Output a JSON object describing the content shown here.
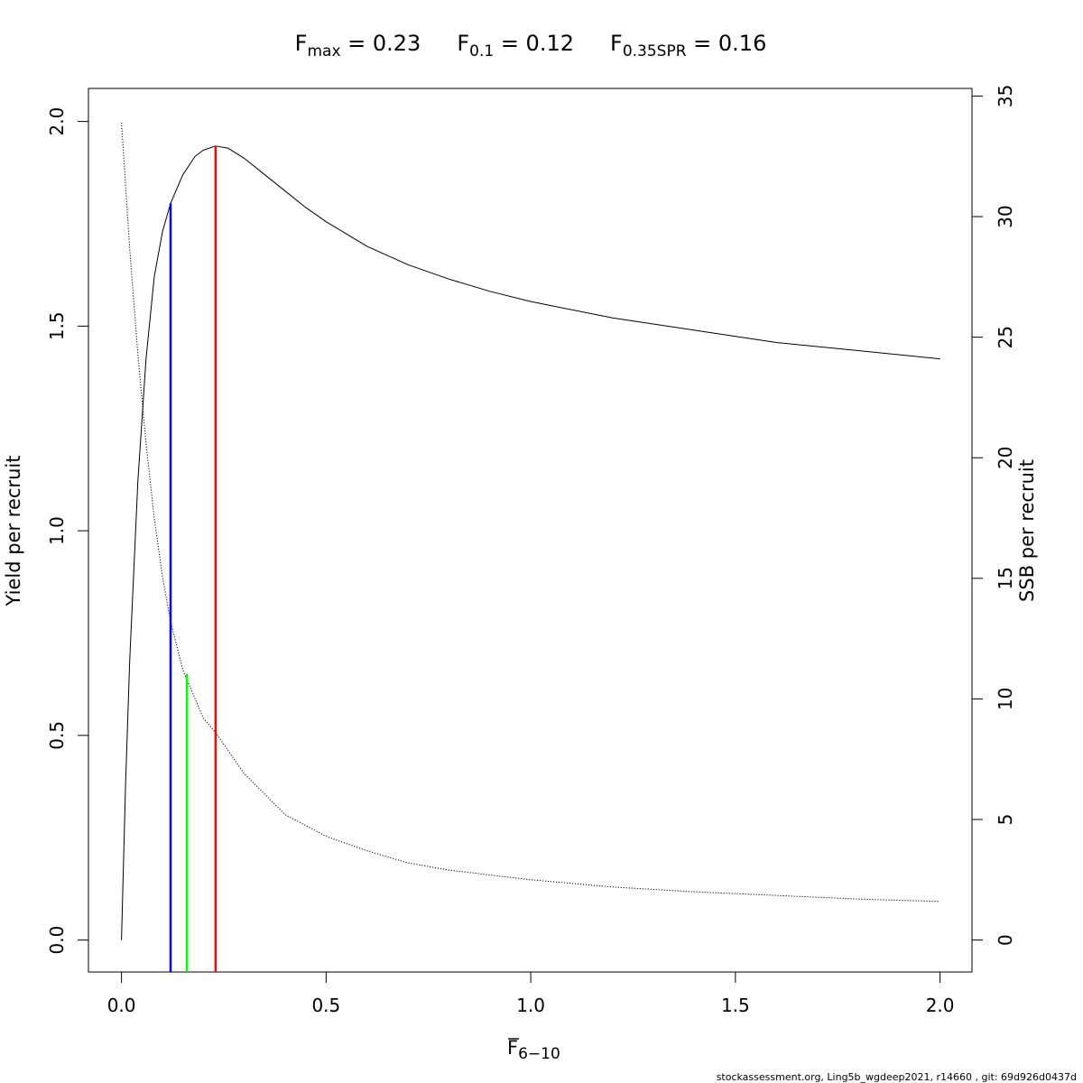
{
  "title_parts": [
    {
      "base": "F",
      "sub": "max",
      "value": " = 0.23"
    },
    {
      "base": "F",
      "sub": "0.1",
      "value": " = 0.12"
    },
    {
      "base": "F",
      "sub": "0.35SPR",
      "value": " = 0.16"
    }
  ],
  "xlabel": {
    "base": "F",
    "sub": "6−10"
  },
  "ylabel_left": "Yield per recruit",
  "ylabel_right": "SSB per recruit",
  "footer": "stockassessment.org, Ling5b_wgdeep2021, r14660 , git: 69d926d0437d",
  "chart_data": {
    "type": "line",
    "xlim": [
      0,
      2
    ],
    "ylim_left": [
      0,
      2
    ],
    "ylim_right": [
      0,
      35
    ],
    "x_ticks": [
      "0.0",
      "0.5",
      "1.0",
      "1.5",
      "2.0"
    ],
    "y_left_ticks": [
      "0.0",
      "0.5",
      "1.0",
      "1.5",
      "2.0"
    ],
    "y_right_ticks": [
      "0",
      "5",
      "10",
      "15",
      "20",
      "25",
      "30",
      "35"
    ],
    "series": [
      {
        "axis": "left",
        "style": "solid",
        "color": "#000000",
        "x": [
          0,
          0.01,
          0.02,
          0.04,
          0.06,
          0.08,
          0.1,
          0.12,
          0.15,
          0.18,
          0.2,
          0.23,
          0.26,
          0.3,
          0.35,
          0.4,
          0.45,
          0.5,
          0.6,
          0.7,
          0.8,
          0.9,
          1.0,
          1.2,
          1.4,
          1.6,
          1.8,
          2.0
        ],
        "y": [
          0,
          0.38,
          0.68,
          1.12,
          1.42,
          1.62,
          1.73,
          1.8,
          1.87,
          1.915,
          1.93,
          1.94,
          1.935,
          1.91,
          1.87,
          1.83,
          1.79,
          1.755,
          1.695,
          1.65,
          1.615,
          1.585,
          1.56,
          1.52,
          1.49,
          1.46,
          1.44,
          1.42
        ]
      },
      {
        "axis": "right",
        "style": "dotted",
        "color": "#000000",
        "x": [
          0,
          0.02,
          0.04,
          0.06,
          0.08,
          0.1,
          0.12,
          0.15,
          0.2,
          0.23,
          0.3,
          0.4,
          0.5,
          0.6,
          0.7,
          0.8,
          1.0,
          1.2,
          1.4,
          1.6,
          1.8,
          2.0
        ],
        "y": [
          33.9,
          28.7,
          24.3,
          20.6,
          17.5,
          15.1,
          13.2,
          11.2,
          9.2,
          8.6,
          6.9,
          5.2,
          4.3,
          3.7,
          3.2,
          2.9,
          2.5,
          2.2,
          2.0,
          1.85,
          1.7,
          1.6
        ]
      }
    ],
    "reference_lines": [
      {
        "label": "F0.1",
        "x": 0.12,
        "y_top": 1.8,
        "color": "#0000ff"
      },
      {
        "label": "F0.35SPR",
        "x": 0.16,
        "y_top": 0.65,
        "color": "#00ff00"
      },
      {
        "label": "Fmax",
        "x": 0.23,
        "y_top": 1.94,
        "color": "#ff0000"
      }
    ]
  }
}
